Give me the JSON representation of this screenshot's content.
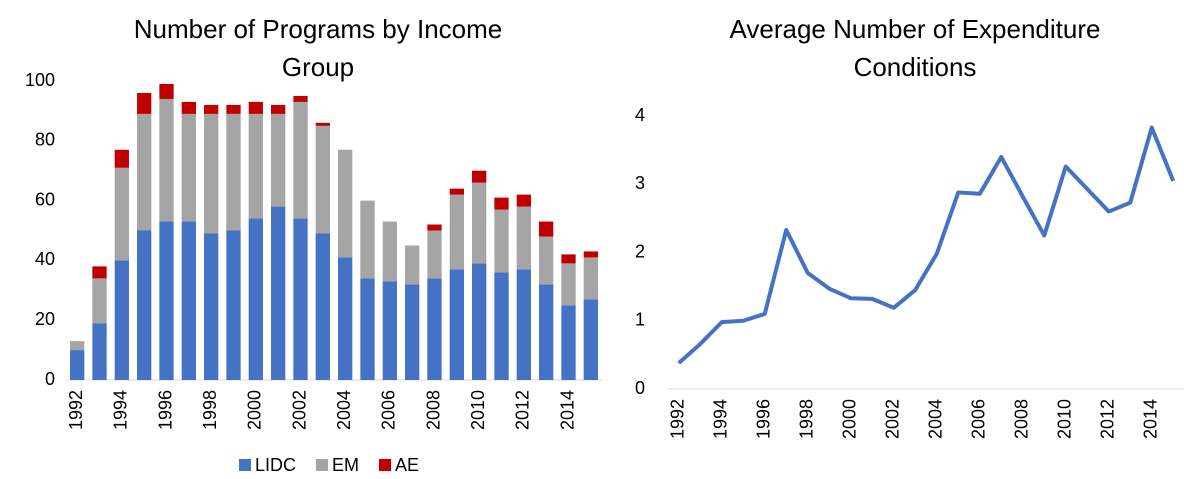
{
  "chart_data": [
    {
      "type": "bar",
      "stacked": true,
      "title": "Number of Programs by Income Group",
      "categories": [
        "1992",
        null,
        "1994",
        null,
        "1996",
        null,
        "1998",
        null,
        "2000",
        null,
        "2002",
        null,
        "2004",
        null,
        "2006",
        null,
        "2008",
        null,
        "2010",
        null,
        "2012",
        null,
        "2014",
        null
      ],
      "series": [
        {
          "name": "LIDC",
          "color": "#4472c4",
          "values": [
            10,
            19,
            40,
            50,
            53,
            53,
            49,
            50,
            54,
            58,
            54,
            49,
            41,
            34,
            33,
            32,
            34,
            37,
            39,
            36,
            37,
            32,
            25,
            27
          ]
        },
        {
          "name": "EM",
          "color": "#a5a5a5",
          "values": [
            3,
            15,
            31,
            39,
            41,
            36,
            40,
            39,
            35,
            31,
            39,
            36,
            36,
            26,
            20,
            13,
            16,
            25,
            27,
            21,
            21,
            16,
            14,
            14
          ]
        },
        {
          "name": "AE",
          "color": "#c00000",
          "values": [
            0,
            4,
            6,
            7,
            5,
            4,
            3,
            3,
            4,
            3,
            2,
            1,
            0,
            0,
            0,
            0,
            2,
            2,
            4,
            4,
            4,
            5,
            3,
            2
          ]
        }
      ],
      "ylim": [
        0,
        100
      ],
      "yticks": [
        0,
        20,
        40,
        60,
        80,
        100
      ],
      "grid": false,
      "legend": "bottom"
    },
    {
      "type": "line",
      "title": "Average Number of Expenditure Conditions",
      "categories": [
        "1992",
        null,
        "1994",
        null,
        "1996",
        null,
        "1998",
        null,
        "2000",
        null,
        "2002",
        null,
        "2004",
        null,
        "2006",
        null,
        "2008",
        null,
        "2010",
        null,
        "2012",
        null,
        "2014",
        null
      ],
      "color": "#4472c4",
      "values": [
        0.38,
        0.66,
        0.98,
        1.0,
        1.1,
        2.33,
        1.7,
        1.47,
        1.33,
        1.32,
        1.19,
        1.45,
        1.98,
        2.88,
        2.86,
        3.4,
        2.82,
        2.25,
        3.26,
        2.93,
        2.6,
        2.73,
        3.83,
        3.05
      ],
      "ylim": [
        0,
        4
      ],
      "yticks": [
        0,
        1,
        2,
        3,
        4
      ],
      "grid": false
    }
  ]
}
